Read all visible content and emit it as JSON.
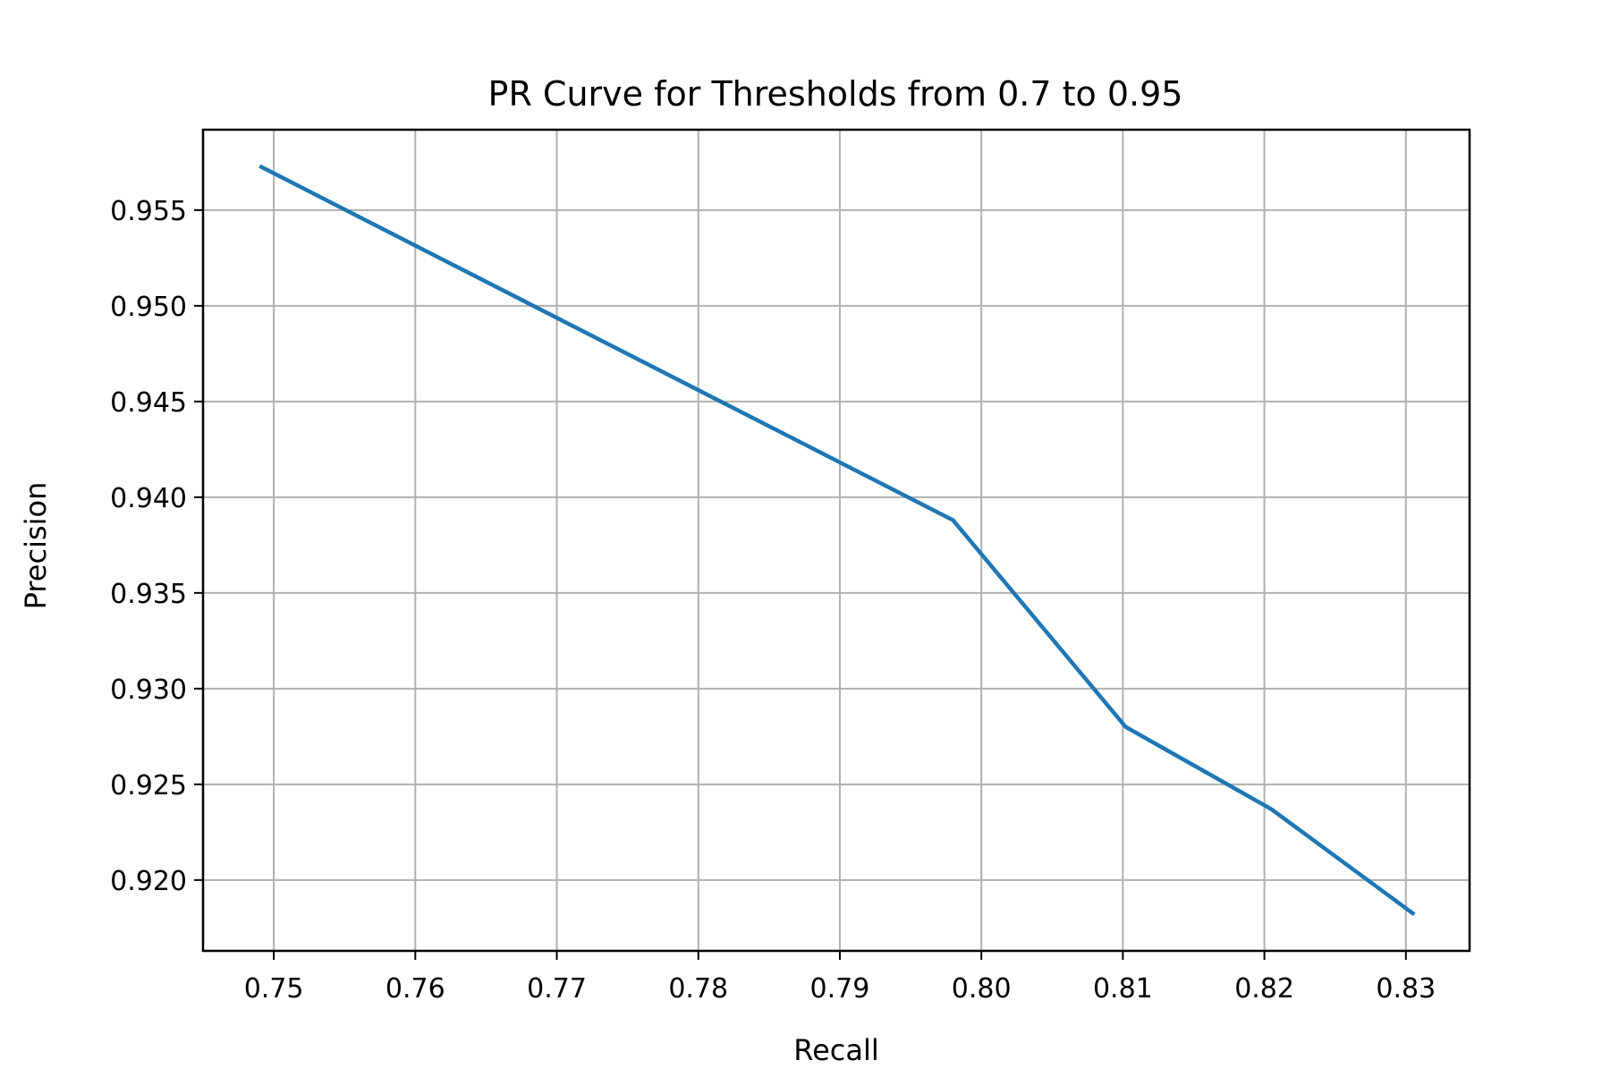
{
  "chart_data": {
    "type": "line",
    "title": "PR Curve for Thresholds from 0.7 to 0.95",
    "xlabel": "Recall",
    "ylabel": "Precision",
    "xlim": [
      0.745,
      0.8345
    ],
    "ylim": [
      0.9163,
      0.9592
    ],
    "xticks": [
      0.75,
      0.76,
      0.77,
      0.78,
      0.79,
      0.8,
      0.81,
      0.82,
      0.83
    ],
    "xtick_labels": [
      "0.75",
      "0.76",
      "0.77",
      "0.78",
      "0.79",
      "0.80",
      "0.81",
      "0.82",
      "0.83"
    ],
    "yticks": [
      0.92,
      0.925,
      0.93,
      0.935,
      0.94,
      0.945,
      0.95,
      0.955
    ],
    "ytick_labels": [
      "0.920",
      "0.925",
      "0.930",
      "0.935",
      "0.940",
      "0.945",
      "0.950",
      "0.955"
    ],
    "grid": true,
    "series": [
      {
        "color": "#1f77b4",
        "x": [
          0.749,
          0.798,
          0.8102,
          0.8205,
          0.8306
        ],
        "y": [
          0.9573,
          0.9388,
          0.928,
          0.9237,
          0.9182
        ]
      }
    ]
  }
}
